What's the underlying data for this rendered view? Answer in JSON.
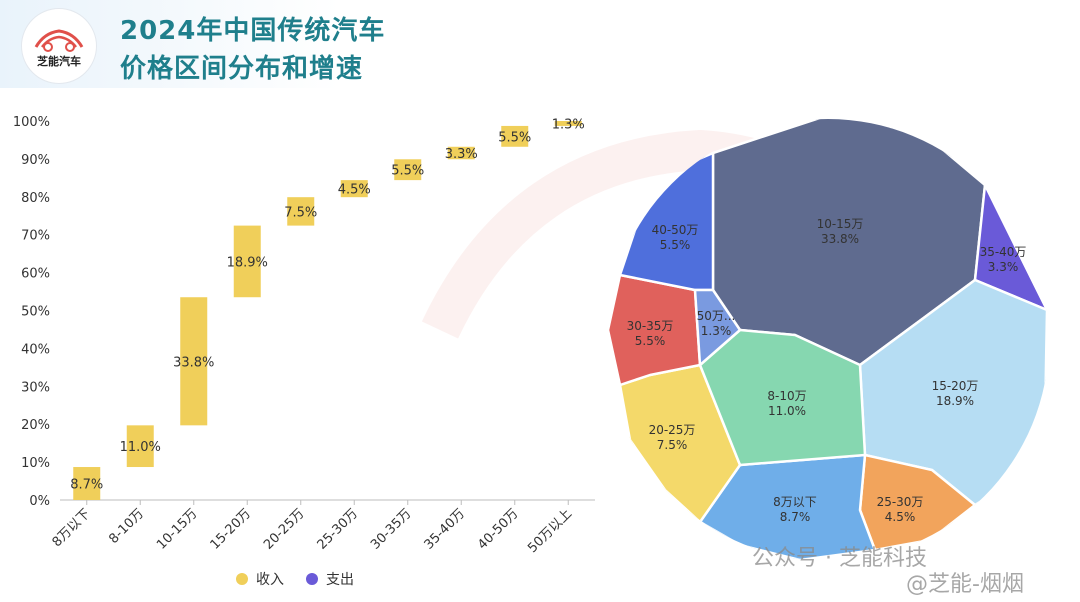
{
  "logo": {
    "text": "芝能汽车"
  },
  "title": {
    "line1": "2024年中国传统汽车",
    "line2": "价格区间分布和增速"
  },
  "chart_data": [
    {
      "type": "bar",
      "subtype": "waterfall",
      "categories": [
        "8万以下",
        "8-10万",
        "10-15万",
        "15-20万",
        "20-25万",
        "25-30万",
        "30-35万",
        "35-40万",
        "40-50万",
        "50万以上"
      ],
      "values": [
        8.7,
        11.0,
        33.8,
        18.9,
        7.5,
        4.5,
        5.5,
        3.3,
        5.5,
        1.3
      ],
      "labels": [
        "8.7%",
        "11.0%",
        "33.8%",
        "18.9%",
        "7.5%",
        "4.5%",
        "5.5%",
        "3.3%",
        "5.5%",
        "1.3%"
      ],
      "yticks": [
        "0%",
        "10%",
        "20%",
        "30%",
        "40%",
        "50%",
        "60%",
        "70%",
        "80%",
        "90%",
        "100%"
      ],
      "ylim": [
        0,
        100
      ],
      "grid": false,
      "legend": {
        "position": "bottom",
        "items": [
          {
            "label": "收入",
            "color": "#f0cf5a"
          },
          {
            "label": "支出",
            "color": "#6a5ad8"
          }
        ]
      },
      "bar_color": "#f0cf5a"
    },
    {
      "type": "pie",
      "subtype": "voronoi-treemap",
      "items": [
        {
          "name": "10-15万",
          "value": "33.8%",
          "color": "#5f6b8f"
        },
        {
          "name": "35-40万",
          "value": "3.3%",
          "color": "#6a5ad8"
        },
        {
          "name": "15-20万",
          "value": "18.9%",
          "color": "#b6ddf3"
        },
        {
          "name": "25-30万",
          "value": "4.5%",
          "color": "#f2a45c"
        },
        {
          "name": "8万以下",
          "value": "8.7%",
          "color": "#6faee9"
        },
        {
          "name": "20-25万",
          "value": "7.5%",
          "color": "#f4d96a"
        },
        {
          "name": "8-10万",
          "value": "11.0%",
          "color": "#86d7b0"
        },
        {
          "name": "30-35万",
          "value": "5.5%",
          "color": "#e0615c"
        },
        {
          "name": "40-50万",
          "value": "5.5%",
          "color": "#4f6fdc"
        },
        {
          "name": "50万...",
          "value": "1.3%",
          "color": "#7a9ae0"
        }
      ]
    }
  ],
  "watermark": {
    "line1": "公众号 · 芝能科技",
    "line2": "@芝能-烟烟"
  }
}
